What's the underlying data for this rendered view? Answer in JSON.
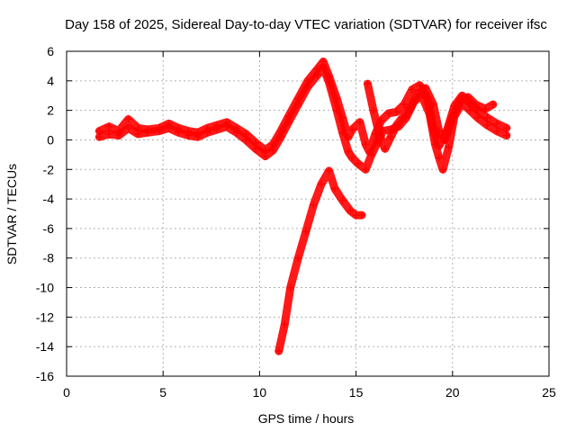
{
  "chart_data": {
    "type": "scatter",
    "title": "Day 158 of 2025, Sidereal Day-to-day VTEC variation (SDTVAR) for receiver ifsc",
    "xlabel": "GPS time / hours",
    "ylabel": "SDTVAR / TECUs",
    "xlim": [
      0,
      25
    ],
    "ylim": [
      -16,
      6
    ],
    "xticks": [
      0,
      5,
      10,
      15,
      20,
      25
    ],
    "yticks": [
      -16,
      -14,
      -12,
      -10,
      -8,
      -6,
      -4,
      -2,
      0,
      2,
      4,
      6
    ],
    "grid": true,
    "legend": "none",
    "marker": "plus",
    "color": "#ff0000",
    "series": [
      {
        "values": [
          [
            1.7,
            0.6
          ],
          [
            2.2,
            0.9
          ],
          [
            2.7,
            0.6
          ],
          [
            3.2,
            1.4
          ],
          [
            3.7,
            0.8
          ],
          [
            4.2,
            0.7
          ],
          [
            4.8,
            0.8
          ],
          [
            5.3,
            1.1
          ],
          [
            5.8,
            0.8
          ],
          [
            6.3,
            0.6
          ],
          [
            6.8,
            0.5
          ],
          [
            7.3,
            0.8
          ],
          [
            7.8,
            1.0
          ],
          [
            8.3,
            1.2
          ],
          [
            8.8,
            0.8
          ],
          [
            9.3,
            0.4
          ],
          [
            9.8,
            -0.2
          ],
          [
            10.3,
            -0.7
          ],
          [
            10.7,
            -0.3
          ],
          [
            11.1,
            0.6
          ],
          [
            11.5,
            1.6
          ],
          [
            12.0,
            2.8
          ],
          [
            12.5,
            4.0
          ],
          [
            13.0,
            4.8
          ],
          [
            13.3,
            5.3
          ],
          [
            13.6,
            4.3
          ],
          [
            14.0,
            2.8
          ],
          [
            14.3,
            1.5
          ],
          [
            14.6,
            0.2
          ],
          [
            14.8,
            0.7
          ],
          [
            15.2,
            1.2
          ],
          [
            15.5,
            -0.3
          ],
          [
            15.7,
            -0.8
          ],
          [
            16.0,
            0.4
          ],
          [
            16.3,
            1.3
          ],
          [
            16.7,
            1.8
          ],
          [
            17.1,
            1.9
          ],
          [
            17.5,
            2.4
          ],
          [
            17.9,
            3.4
          ],
          [
            18.3,
            3.7
          ],
          [
            18.7,
            2.8
          ],
          [
            19.0,
            0.8
          ],
          [
            19.3,
            -0.4
          ],
          [
            19.7,
            0.6
          ],
          [
            20.1,
            2.3
          ],
          [
            20.5,
            3.0
          ],
          [
            20.9,
            2.5
          ],
          [
            21.3,
            2.0
          ],
          [
            21.8,
            1.5
          ],
          [
            22.3,
            1.1
          ],
          [
            22.8,
            0.8
          ]
        ]
      },
      {
        "values": [
          [
            1.7,
            0.2
          ],
          [
            2.2,
            0.4
          ],
          [
            2.7,
            0.3
          ],
          [
            3.2,
            0.8
          ],
          [
            3.7,
            0.4
          ],
          [
            4.2,
            0.5
          ],
          [
            4.8,
            0.6
          ],
          [
            5.3,
            0.8
          ],
          [
            5.8,
            0.5
          ],
          [
            6.3,
            0.3
          ],
          [
            6.8,
            0.2
          ],
          [
            7.3,
            0.5
          ],
          [
            7.8,
            0.7
          ],
          [
            8.3,
            0.9
          ],
          [
            8.8,
            0.5
          ],
          [
            9.3,
            0.0
          ],
          [
            9.8,
            -0.6
          ],
          [
            10.3,
            -1.1
          ],
          [
            10.7,
            -0.7
          ],
          [
            11.1,
            0.2
          ],
          [
            11.5,
            1.2
          ],
          [
            12.0,
            2.4
          ],
          [
            12.5,
            3.6
          ],
          [
            13.0,
            4.4
          ],
          [
            13.3,
            4.9
          ],
          [
            13.6,
            3.9
          ],
          [
            14.0,
            2.0
          ],
          [
            14.3,
            0.5
          ],
          [
            14.6,
            -0.8
          ],
          [
            14.8,
            -1.2
          ],
          [
            15.1,
            -1.6
          ],
          [
            15.5,
            -2.0
          ],
          [
            15.8,
            -1.0
          ],
          [
            16.1,
            -0.2
          ],
          [
            16.4,
            0.6
          ],
          [
            16.8,
            0.7
          ],
          [
            17.2,
            0.9
          ],
          [
            17.6,
            1.5
          ],
          [
            18.0,
            2.6
          ],
          [
            18.4,
            3.0
          ],
          [
            18.8,
            1.8
          ],
          [
            19.1,
            -0.3
          ],
          [
            19.3,
            -1.2
          ],
          [
            19.5,
            -2.0
          ],
          [
            19.8,
            -0.5
          ],
          [
            20.1,
            1.6
          ],
          [
            20.5,
            2.5
          ],
          [
            20.9,
            2.0
          ],
          [
            21.3,
            1.5
          ],
          [
            21.8,
            1.0
          ],
          [
            22.3,
            0.6
          ],
          [
            22.8,
            0.3
          ]
        ]
      },
      {
        "values": [
          [
            15.6,
            3.8
          ],
          [
            15.9,
            2.0
          ],
          [
            16.2,
            0.4
          ],
          [
            16.5,
            -0.6
          ],
          [
            16.8,
            0.2
          ],
          [
            17.1,
            1.0
          ],
          [
            17.4,
            1.5
          ],
          [
            17.8,
            2.1
          ],
          [
            18.2,
            3.1
          ],
          [
            18.6,
            3.5
          ],
          [
            19.0,
            2.4
          ],
          [
            19.3,
            0.6
          ],
          [
            19.6,
            0.0
          ],
          [
            20.0,
            1.5
          ],
          [
            20.4,
            2.7
          ],
          [
            20.8,
            2.9
          ],
          [
            21.2,
            2.4
          ],
          [
            21.7,
            2.1
          ],
          [
            22.1,
            2.4
          ]
        ]
      },
      {
        "values": [
          [
            11.0,
            -14.3
          ],
          [
            11.3,
            -12.5
          ],
          [
            11.6,
            -10.0
          ],
          [
            12.0,
            -8.0
          ],
          [
            12.4,
            -6.2
          ],
          [
            12.8,
            -4.4
          ],
          [
            13.2,
            -3.0
          ],
          [
            13.6,
            -2.1
          ],
          [
            13.9,
            -3.3
          ],
          [
            14.3,
            -4.1
          ],
          [
            14.7,
            -4.8
          ],
          [
            15.0,
            -5.1
          ],
          [
            15.3,
            -5.1
          ]
        ]
      }
    ]
  }
}
